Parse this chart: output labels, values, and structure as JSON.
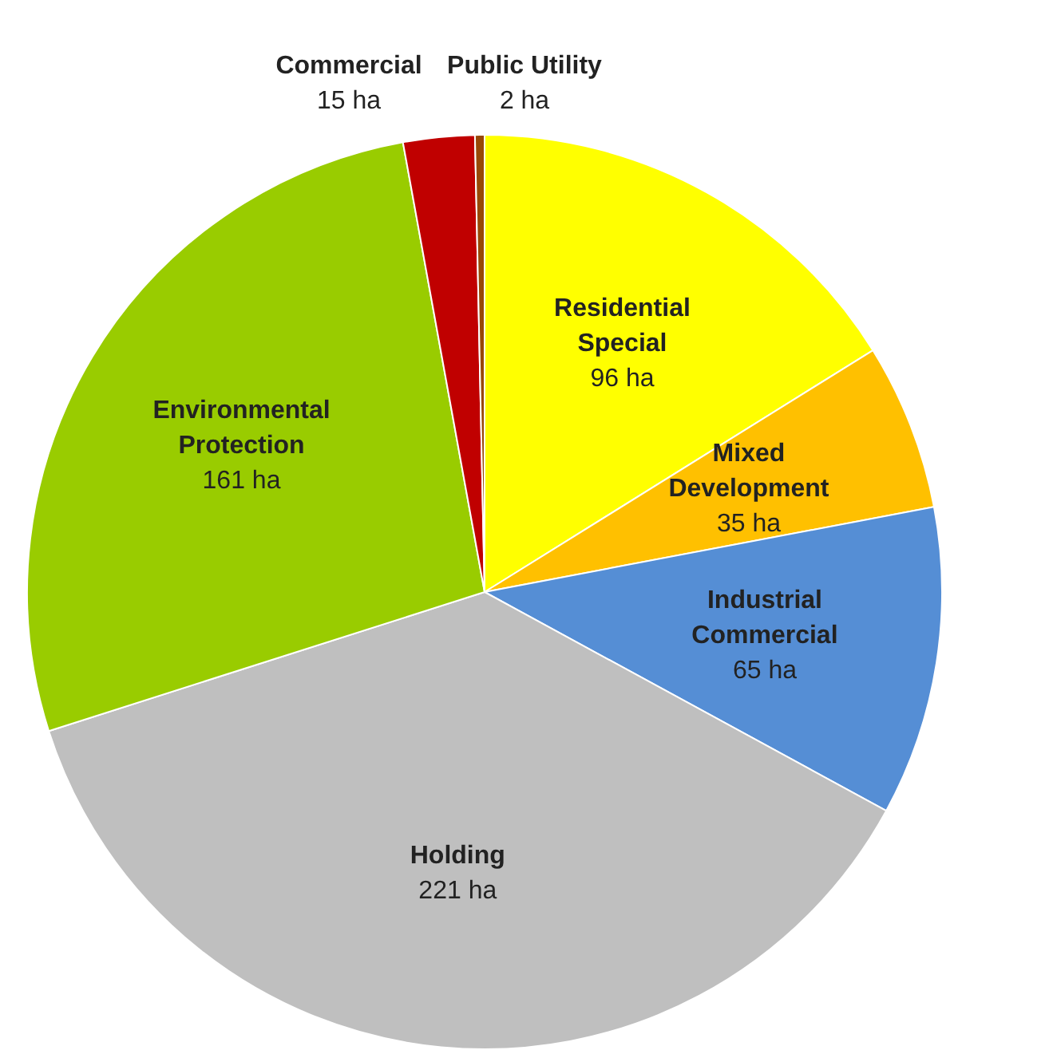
{
  "chart_data": {
    "type": "pie",
    "categories": [
      "Residential Special",
      "Mixed Development",
      "Industrial Commercial",
      "Holding",
      "Environmental Protection",
      "Commercial",
      "Public Utility"
    ],
    "values": [
      96,
      35,
      65,
      221,
      161,
      15,
      2
    ],
    "colors": [
      "#ffff00",
      "#ffc000",
      "#558ed5",
      "#bfbfbf",
      "#99cc00",
      "#c00000",
      "#984807"
    ],
    "value_labels": [
      "96 ha",
      "35 ha",
      "65 ha",
      "221 ha",
      "161 ha",
      "15 ha",
      "2 ha"
    ],
    "legend": false
  }
}
